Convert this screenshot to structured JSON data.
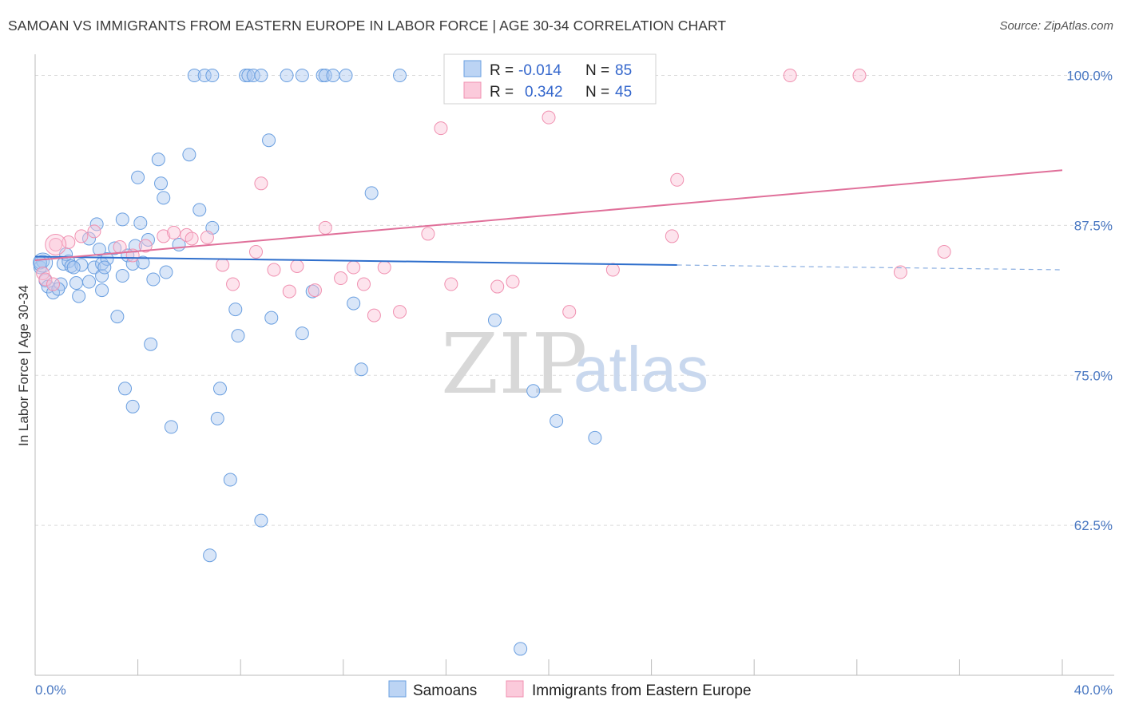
{
  "title": "SAMOAN VS IMMIGRANTS FROM EASTERN EUROPE IN LABOR FORCE | AGE 30-34 CORRELATION CHART",
  "source": "Source: ZipAtlas.com",
  "watermark": {
    "zip": "ZIP",
    "atlas": "atlas"
  },
  "legend": {
    "r_label": "R =",
    "n_label": "N =",
    "series": [
      {
        "r": "-0.014",
        "n": "85"
      },
      {
        "r": "0.342",
        "n": "45"
      }
    ]
  },
  "chart_data": {
    "type": "scatter",
    "xlabel": "",
    "ylabel": "In Labor Force | Age 30-34",
    "xlim": [
      0,
      40
    ],
    "ylim": [
      50,
      101.5
    ],
    "x_tick_labels": [
      "0.0%",
      "40.0%"
    ],
    "y_ticks": [
      62.5,
      75.0,
      87.5,
      100.0
    ],
    "y_tick_labels": [
      "62.5%",
      "75.0%",
      "87.5%",
      "100.0%"
    ],
    "grid": true,
    "legend_position": "top-center",
    "colors": {
      "samoans": "#6a9fe0",
      "eastern_europe": "#f090b0",
      "samoans_line": "#2f6fcc",
      "eastern_europe_line": "#e0709a"
    },
    "series": [
      {
        "name": "Samoans",
        "trend": {
          "x": [
            0,
            25
          ],
          "y": [
            84.9,
            84.2
          ],
          "dashed_to": [
            40,
            83.8
          ]
        },
        "points": [
          [
            0.2,
            84.0
          ],
          [
            0.3,
            84.5
          ],
          [
            0.4,
            82.9
          ],
          [
            0.5,
            82.4
          ],
          [
            0.7,
            81.9
          ],
          [
            1.0,
            82.6
          ],
          [
            1.1,
            84.3
          ],
          [
            1.2,
            85.1
          ],
          [
            1.3,
            84.5
          ],
          [
            1.4,
            84.1
          ],
          [
            1.6,
            82.7
          ],
          [
            1.7,
            81.6
          ],
          [
            1.8,
            84.2
          ],
          [
            2.1,
            82.8
          ],
          [
            2.1,
            86.4
          ],
          [
            2.3,
            84.0
          ],
          [
            2.4,
            87.6
          ],
          [
            2.5,
            85.5
          ],
          [
            2.6,
            83.3
          ],
          [
            2.6,
            84.3
          ],
          [
            2.6,
            82.1
          ],
          [
            2.8,
            84.7
          ],
          [
            3.1,
            85.6
          ],
          [
            3.2,
            79.9
          ],
          [
            3.4,
            88.0
          ],
          [
            3.4,
            83.3
          ],
          [
            3.6,
            85.0
          ],
          [
            3.8,
            84.3
          ],
          [
            3.5,
            73.9
          ],
          [
            3.8,
            72.4
          ],
          [
            4.0,
            91.5
          ],
          [
            4.2,
            84.4
          ],
          [
            4.1,
            87.7
          ],
          [
            4.4,
            86.3
          ],
          [
            4.5,
            77.6
          ],
          [
            4.6,
            83.0
          ],
          [
            4.8,
            93.0
          ],
          [
            4.9,
            91.0
          ],
          [
            5.0,
            89.8
          ],
          [
            5.1,
            83.6
          ],
          [
            5.3,
            70.7
          ],
          [
            5.6,
            85.9
          ],
          [
            6.0,
            93.4
          ],
          [
            6.4,
            88.8
          ],
          [
            6.9,
            87.3
          ],
          [
            7.1,
            71.4
          ],
          [
            7.2,
            73.9
          ],
          [
            7.6,
            66.3
          ],
          [
            7.8,
            80.5
          ],
          [
            7.9,
            78.3
          ],
          [
            8.8,
            62.9
          ],
          [
            9.1,
            94.6
          ],
          [
            9.2,
            79.8
          ],
          [
            10.4,
            78.5
          ],
          [
            10.8,
            82.0
          ],
          [
            12.4,
            81.0
          ],
          [
            12.7,
            75.5
          ],
          [
            13.1,
            90.2
          ],
          [
            17.9,
            79.6
          ],
          [
            19.4,
            73.7
          ],
          [
            20.3,
            71.2
          ],
          [
            21.8,
            69.8
          ],
          [
            6.8,
            60.0
          ],
          [
            18.9,
            52.2
          ],
          [
            6.2,
            100.0
          ],
          [
            6.6,
            100.0
          ],
          [
            6.9,
            100.0
          ],
          [
            8.2,
            100.0
          ],
          [
            8.3,
            100.0
          ],
          [
            8.5,
            100.0
          ],
          [
            8.8,
            100.0
          ],
          [
            9.8,
            100.0
          ],
          [
            10.4,
            100.0
          ],
          [
            11.2,
            100.0
          ],
          [
            11.3,
            100.0
          ],
          [
            11.6,
            100.0
          ],
          [
            12.1,
            100.0
          ],
          [
            14.2,
            100.0
          ],
          [
            19.6,
            100.0
          ],
          [
            20.3,
            100.0
          ],
          [
            0.2,
            84.4
          ],
          [
            0.9,
            82.2
          ],
          [
            1.5,
            84.0
          ],
          [
            2.7,
            84.0
          ],
          [
            3.9,
            85.8
          ]
        ]
      },
      {
        "name": "Immigrants from Eastern Europe",
        "trend": {
          "x": [
            0,
            40
          ],
          "y": [
            84.6,
            92.1
          ]
        },
        "points": [
          [
            0.3,
            83.5
          ],
          [
            0.4,
            83.0
          ],
          [
            0.7,
            82.6
          ],
          [
            0.8,
            85.9
          ],
          [
            1.3,
            86.1
          ],
          [
            1.8,
            86.6
          ],
          [
            2.3,
            87.0
          ],
          [
            3.3,
            85.7
          ],
          [
            3.8,
            85.0
          ],
          [
            4.3,
            85.8
          ],
          [
            5.0,
            86.6
          ],
          [
            5.4,
            86.9
          ],
          [
            5.9,
            86.7
          ],
          [
            6.1,
            86.4
          ],
          [
            6.7,
            86.5
          ],
          [
            7.3,
            84.2
          ],
          [
            7.7,
            82.6
          ],
          [
            8.6,
            85.3
          ],
          [
            8.8,
            91.0
          ],
          [
            9.3,
            83.8
          ],
          [
            9.9,
            82.0
          ],
          [
            10.2,
            84.1
          ],
          [
            10.9,
            82.1
          ],
          [
            11.3,
            87.3
          ],
          [
            11.9,
            83.1
          ],
          [
            12.4,
            84.0
          ],
          [
            12.8,
            82.6
          ],
          [
            13.2,
            80.0
          ],
          [
            13.6,
            84.0
          ],
          [
            14.2,
            80.3
          ],
          [
            15.3,
            86.8
          ],
          [
            15.8,
            95.6
          ],
          [
            16.2,
            82.6
          ],
          [
            18.0,
            82.4
          ],
          [
            18.6,
            82.8
          ],
          [
            20.0,
            96.5
          ],
          [
            20.8,
            80.3
          ],
          [
            21.1,
            100.0
          ],
          [
            22.5,
            83.8
          ],
          [
            24.8,
            86.6
          ],
          [
            25.0,
            91.3
          ],
          [
            29.4,
            100.0
          ],
          [
            32.1,
            100.0
          ],
          [
            33.7,
            83.6
          ],
          [
            35.4,
            85.3
          ]
        ]
      }
    ]
  },
  "bottom_legend": [
    "Samoans",
    "Immigrants from Eastern Europe"
  ]
}
